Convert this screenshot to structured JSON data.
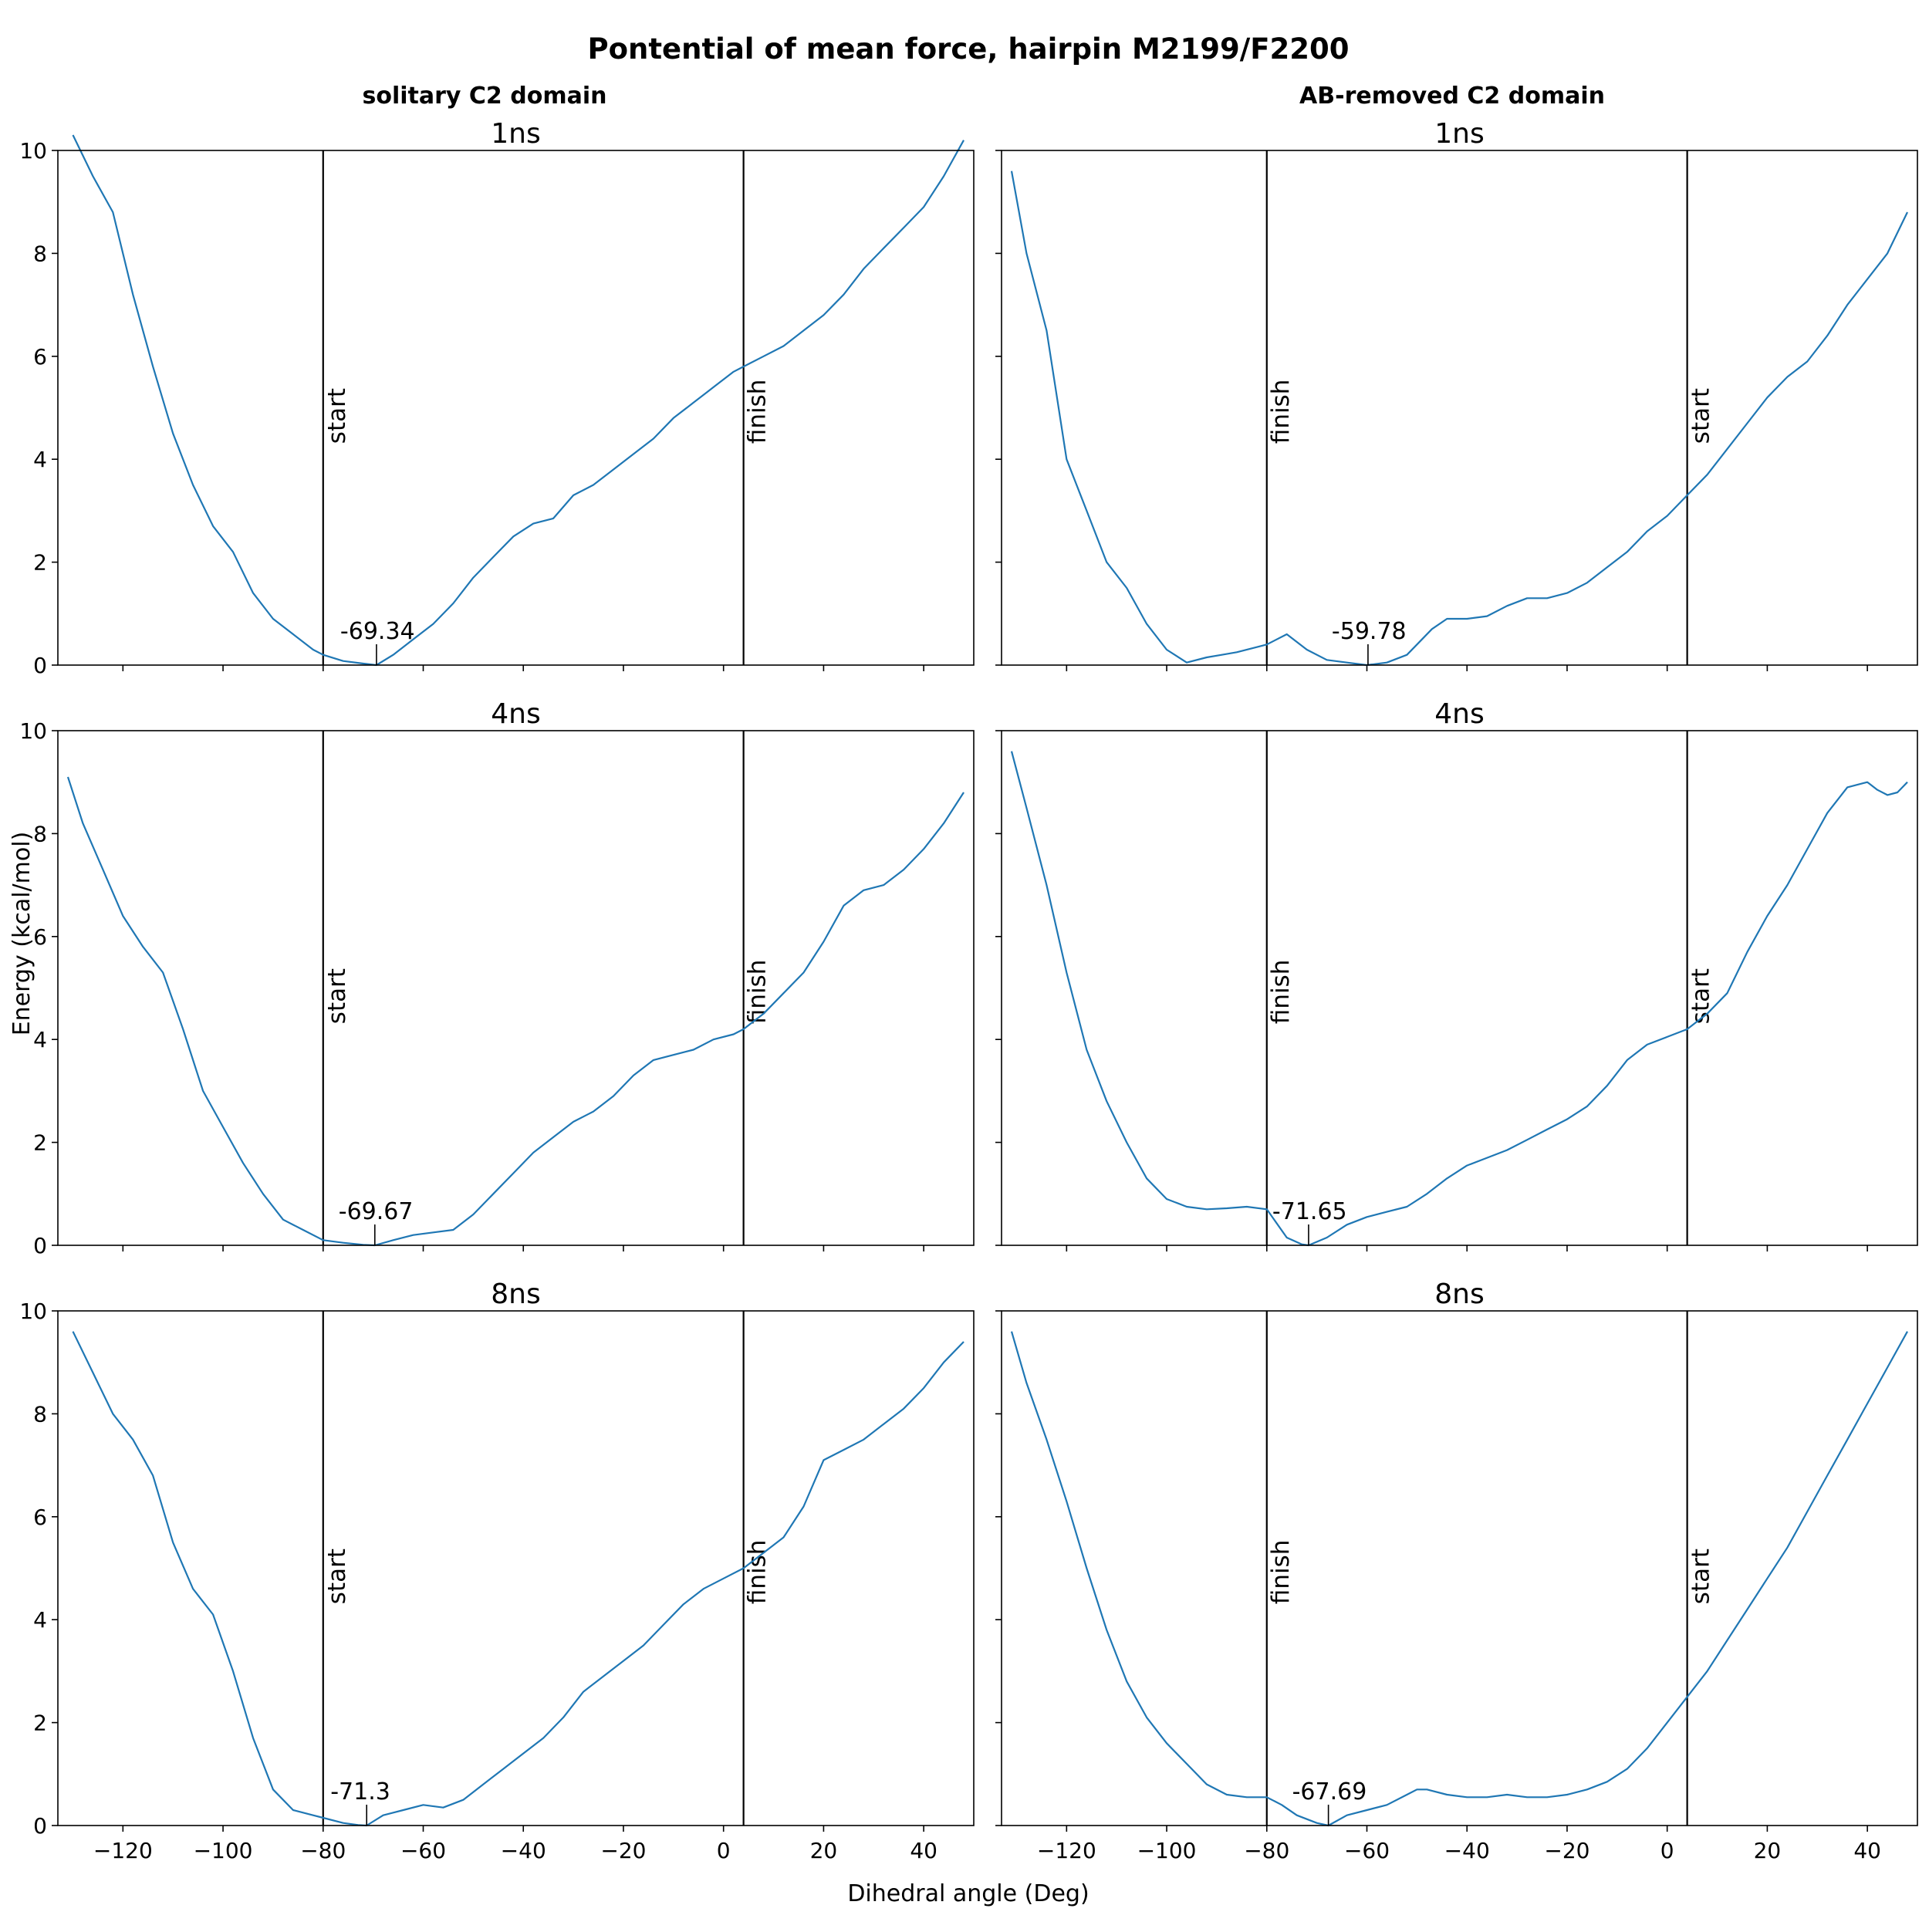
{
  "figure": {
    "title": "Pontential of mean force, hairpin M2199/F2200",
    "xlabel": "Dihedral angle (Deg)",
    "ylabel": "Energy (kcal/mol)",
    "col_titles": [
      "solitary C2 domain",
      "AB-removed C2 domain"
    ],
    "line_color": "#1f77b4"
  },
  "chart_data": [
    {
      "type": "line",
      "title": "1ns",
      "column": "solitary C2 domain",
      "xlim": [
        -133,
        50
      ],
      "ylim": [
        0,
        10
      ],
      "xticks": [
        -120,
        -100,
        -80,
        -60,
        -40,
        -20,
        0,
        20,
        40
      ],
      "yticks": [
        0,
        2,
        4,
        6,
        8,
        10
      ],
      "x": [
        -130,
        -126,
        -122,
        -118,
        -114,
        -110,
        -106,
        -102,
        -98,
        -94,
        -90,
        -86,
        -82,
        -80,
        -76,
        -72,
        -69.34,
        -66,
        -62,
        -58,
        -54,
        -50,
        -46,
        -42,
        -38,
        -34,
        -30,
        -26,
        -22,
        -18,
        -14,
        -10,
        -6,
        -2,
        2,
        4,
        8,
        12,
        16,
        20,
        24,
        28,
        32,
        36,
        40,
        44,
        48
      ],
      "y": [
        10.3,
        9.5,
        8.8,
        7.2,
        5.8,
        4.5,
        3.5,
        2.7,
        2.2,
        1.4,
        0.9,
        0.6,
        0.3,
        0.2,
        0.08,
        0.03,
        0,
        0.2,
        0.5,
        0.8,
        1.2,
        1.7,
        2.1,
        2.5,
        2.75,
        2.85,
        3.3,
        3.5,
        3.8,
        4.1,
        4.4,
        4.8,
        5.1,
        5.4,
        5.7,
        5.8,
        6.0,
        6.2,
        6.5,
        6.8,
        7.2,
        7.7,
        8.1,
        8.5,
        8.9,
        9.5,
        10.2
      ],
      "vlines": [
        {
          "x": -80,
          "label": "start"
        },
        {
          "x": 4,
          "label": "finish"
        }
      ],
      "min_label": "-69.34",
      "min_x": -69.34
    },
    {
      "type": "line",
      "title": "1ns",
      "column": "AB-removed C2 domain",
      "xlim": [
        -133,
        50
      ],
      "ylim": [
        0,
        10
      ],
      "xticks": [
        -120,
        -100,
        -80,
        -60,
        -40,
        -20,
        0,
        20,
        40
      ],
      "yticks": [
        0,
        2,
        4,
        6,
        8,
        10
      ],
      "x": [
        -131,
        -128,
        -124,
        -120,
        -116,
        -112,
        -108,
        -104,
        -100,
        -96,
        -92,
        -89,
        -86,
        -82,
        -80,
        -76,
        -72,
        -68,
        -64,
        -60,
        -56,
        -52,
        -50,
        -47,
        -44,
        -40,
        -36,
        -32,
        -28,
        -24,
        -20,
        -16,
        -12,
        -8,
        -4,
        0,
        4,
        8,
        12,
        16,
        20,
        24,
        28,
        32,
        36,
        40,
        44,
        48
      ],
      "y": [
        9.6,
        8.0,
        6.5,
        4.0,
        3.0,
        2.0,
        1.5,
        0.8,
        0.3,
        0.05,
        0.15,
        0.2,
        0.25,
        0.35,
        0.4,
        0.6,
        0.3,
        0.1,
        0.05,
        0,
        0.05,
        0.2,
        0.4,
        0.7,
        0.9,
        0.9,
        0.95,
        1.15,
        1.3,
        1.3,
        1.4,
        1.6,
        1.9,
        2.2,
        2.6,
        2.9,
        3.3,
        3.7,
        4.2,
        4.7,
        5.2,
        5.6,
        5.9,
        6.4,
        7.0,
        7.5,
        8.0,
        8.8
      ],
      "vlines": [
        {
          "x": -80,
          "label": "finish"
        },
        {
          "x": 4,
          "label": "start"
        }
      ],
      "min_label": "-59.78",
      "min_x": -59.78
    },
    {
      "type": "line",
      "title": "4ns",
      "column": "solitary C2 domain",
      "xlim": [
        -133,
        50
      ],
      "ylim": [
        0,
        10
      ],
      "xticks": [
        -120,
        -100,
        -80,
        -60,
        -40,
        -20,
        0,
        20,
        40
      ],
      "yticks": [
        0,
        2,
        4,
        6,
        8,
        10
      ],
      "x": [
        -131,
        -128,
        -124,
        -120,
        -116,
        -112,
        -108,
        -104,
        -100,
        -96,
        -92,
        -88,
        -84,
        -80,
        -76,
        -72,
        -69.67,
        -66,
        -62,
        -58,
        -54,
        -50,
        -46,
        -42,
        -38,
        -34,
        -30,
        -26,
        -22,
        -18,
        -14,
        -10,
        -6,
        -2,
        2,
        4,
        8,
        12,
        16,
        20,
        24,
        28,
        32,
        36,
        40,
        44,
        48
      ],
      "y": [
        9.1,
        8.2,
        7.3,
        6.4,
        5.8,
        5.3,
        4.2,
        3.0,
        2.3,
        1.6,
        1.0,
        0.5,
        0.3,
        0.1,
        0.05,
        0.01,
        0,
        0.1,
        0.2,
        0.25,
        0.3,
        0.6,
        1.0,
        1.4,
        1.8,
        2.1,
        2.4,
        2.6,
        2.9,
        3.3,
        3.6,
        3.7,
        3.8,
        4.0,
        4.1,
        4.2,
        4.5,
        4.9,
        5.3,
        5.9,
        6.6,
        6.9,
        7.0,
        7.3,
        7.7,
        8.2,
        8.8
      ],
      "vlines": [
        {
          "x": -80,
          "label": "start"
        },
        {
          "x": 4,
          "label": "finish"
        }
      ],
      "min_label": "-69.67",
      "min_x": -69.67
    },
    {
      "type": "line",
      "title": "4ns",
      "column": "AB-removed C2 domain",
      "xlim": [
        -133,
        50
      ],
      "ylim": [
        0,
        10
      ],
      "xticks": [
        -120,
        -100,
        -80,
        -60,
        -40,
        -20,
        0,
        20,
        40
      ],
      "yticks": [
        0,
        2,
        4,
        6,
        8,
        10
      ],
      "x": [
        -131,
        -128,
        -124,
        -120,
        -116,
        -112,
        -108,
        -104,
        -100,
        -96,
        -92,
        -88,
        -84,
        -80,
        -76,
        -73,
        -71.65,
        -68,
        -64,
        -60,
        -56,
        -52,
        -48,
        -44,
        -40,
        -36,
        -32,
        -28,
        -24,
        -20,
        -16,
        -12,
        -8,
        -4,
        0,
        4,
        8,
        12,
        16,
        20,
        24,
        28,
        32,
        36,
        40,
        42,
        44,
        46,
        48
      ],
      "y": [
        9.6,
        8.5,
        7.0,
        5.3,
        3.8,
        2.8,
        2.0,
        1.3,
        0.9,
        0.75,
        0.7,
        0.72,
        0.75,
        0.7,
        0.15,
        0.02,
        0,
        0.15,
        0.4,
        0.55,
        0.65,
        0.75,
        1.0,
        1.3,
        1.55,
        1.7,
        1.85,
        2.05,
        2.25,
        2.45,
        2.7,
        3.1,
        3.6,
        3.9,
        4.05,
        4.2,
        4.5,
        4.9,
        5.7,
        6.4,
        7.0,
        7.7,
        8.4,
        8.9,
        9.0,
        8.85,
        8.75,
        8.8,
        9.0
      ],
      "vlines": [
        {
          "x": -80,
          "label": "finish"
        },
        {
          "x": 4,
          "label": "start"
        }
      ],
      "min_label": "-71.65",
      "min_x": -71.65
    },
    {
      "type": "line",
      "title": "8ns",
      "column": "solitary C2 domain",
      "xlim": [
        -133,
        50
      ],
      "ylim": [
        0,
        10
      ],
      "xticks": [
        -120,
        -100,
        -80,
        -60,
        -40,
        -20,
        0,
        20,
        40
      ],
      "yticks": [
        0,
        2,
        4,
        6,
        8,
        10
      ],
      "x": [
        -130,
        -126,
        -122,
        -118,
        -114,
        -110,
        -106,
        -102,
        -98,
        -94,
        -90,
        -86,
        -82,
        -80,
        -76,
        -73,
        -71.3,
        -68,
        -64,
        -60,
        -56,
        -52,
        -48,
        -44,
        -40,
        -36,
        -32,
        -28,
        -24,
        -20,
        -16,
        -12,
        -8,
        -4,
        0,
        4,
        8,
        12,
        16,
        20,
        24,
        28,
        32,
        36,
        40,
        44,
        48
      ],
      "y": [
        9.6,
        8.8,
        8.0,
        7.5,
        6.8,
        5.5,
        4.6,
        4.1,
        3.0,
        1.7,
        0.7,
        0.3,
        0.2,
        0.15,
        0.05,
        0.01,
        0,
        0.2,
        0.3,
        0.4,
        0.35,
        0.5,
        0.8,
        1.1,
        1.4,
        1.7,
        2.1,
        2.6,
        2.9,
        3.2,
        3.5,
        3.9,
        4.3,
        4.6,
        4.8,
        5.0,
        5.3,
        5.6,
        6.2,
        7.1,
        7.3,
        7.5,
        7.8,
        8.1,
        8.5,
        9.0,
        9.4
      ],
      "vlines": [
        {
          "x": -80,
          "label": "start"
        },
        {
          "x": 4,
          "label": "finish"
        }
      ],
      "min_label": "-71.3",
      "min_x": -71.3
    },
    {
      "type": "line",
      "title": "8ns",
      "column": "AB-removed C2 domain",
      "xlim": [
        -133,
        50
      ],
      "ylim": [
        0,
        10
      ],
      "xticks": [
        -120,
        -100,
        -80,
        -60,
        -40,
        -20,
        0,
        20,
        40
      ],
      "yticks": [
        0,
        2,
        4,
        6,
        8,
        10
      ],
      "x": [
        -131,
        -128,
        -124,
        -120,
        -116,
        -112,
        -108,
        -104,
        -100,
        -96,
        -92,
        -88,
        -84,
        -80,
        -77,
        -74,
        -70,
        -67.69,
        -64,
        -60,
        -56,
        -52,
        -50,
        -48,
        -44,
        -40,
        -36,
        -32,
        -28,
        -24,
        -20,
        -16,
        -12,
        -8,
        -4,
        0,
        4,
        8,
        12,
        16,
        20,
        24,
        28,
        32,
        36,
        40,
        44,
        48
      ],
      "y": [
        9.6,
        8.6,
        7.5,
        6.3,
        5.0,
        3.8,
        2.8,
        2.1,
        1.6,
        1.2,
        0.8,
        0.6,
        0.55,
        0.55,
        0.4,
        0.2,
        0.05,
        0,
        0.2,
        0.3,
        0.4,
        0.6,
        0.7,
        0.7,
        0.6,
        0.55,
        0.55,
        0.6,
        0.55,
        0.55,
        0.6,
        0.7,
        0.85,
        1.1,
        1.5,
        2.0,
        2.5,
        3.0,
        3.6,
        4.2,
        4.8,
        5.4,
        6.1,
        6.8,
        7.5,
        8.2,
        8.9,
        9.6
      ],
      "vlines": [
        {
          "x": -80,
          "label": "finish"
        },
        {
          "x": 4,
          "label": "start"
        }
      ],
      "min_label": "-67.69",
      "min_x": -67.69
    }
  ]
}
